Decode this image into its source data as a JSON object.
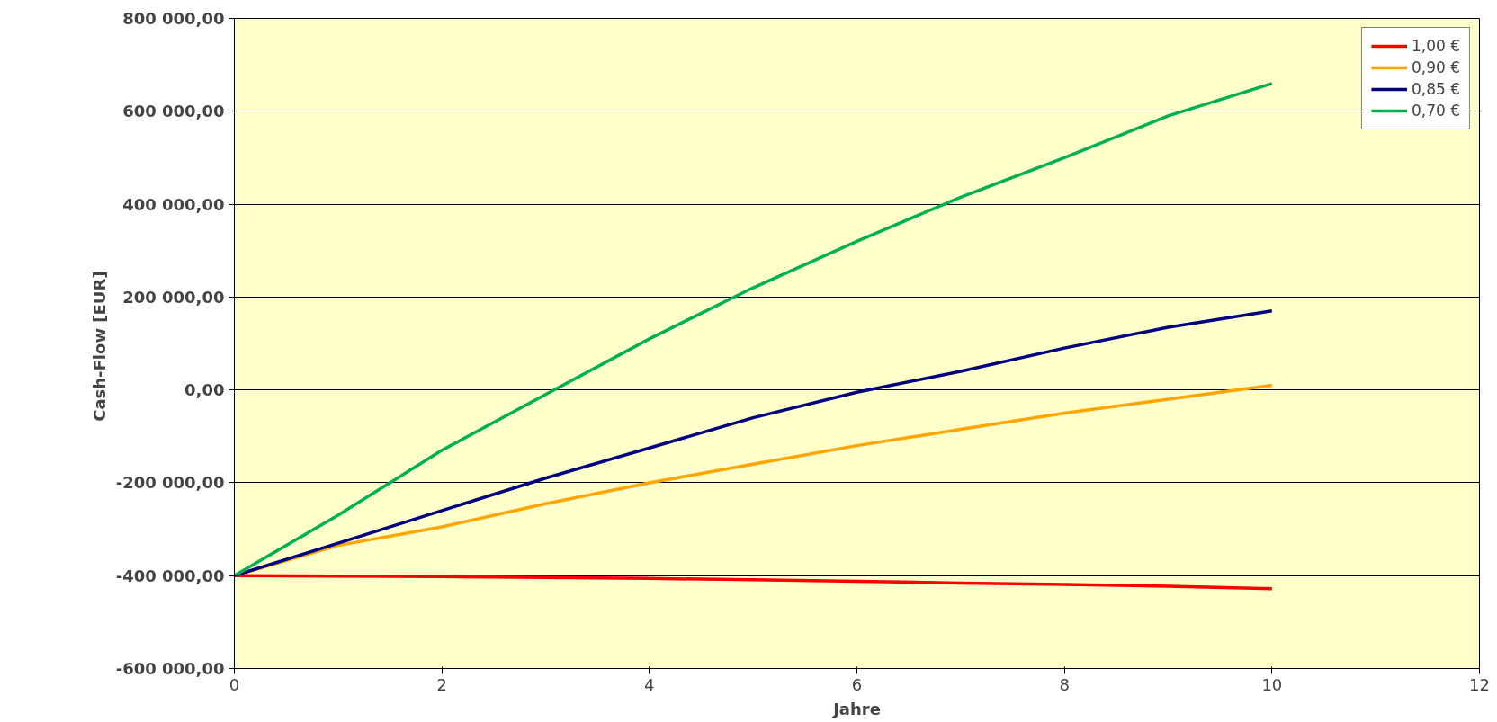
{
  "chart_data": {
    "type": "line",
    "xlabel": "Jahre",
    "ylabel": "Cash-Flow  [EUR]",
    "x": [
      0,
      1,
      2,
      3,
      4,
      5,
      6,
      7,
      8,
      9,
      10
    ],
    "series": [
      {
        "name": "1,00 €",
        "color": "#ff0000",
        "values": [
          -400000,
          -401000,
          -402000,
          -404000,
          -406000,
          -409000,
          -412000,
          -416000,
          -419000,
          -423000,
          -428000
        ]
      },
      {
        "name": "0,90 €",
        "color": "#ffa500",
        "values": [
          -400000,
          -335000,
          -295000,
          -245000,
          -200000,
          -160000,
          -120000,
          -85000,
          -50000,
          -20000,
          10000
        ]
      },
      {
        "name": "0,85 €",
        "color": "#000080",
        "values": [
          -400000,
          -330000,
          -260000,
          -190000,
          -125000,
          -60000,
          -5000,
          40000,
          90000,
          135000,
          170000
        ]
      },
      {
        "name": "0,70 €",
        "color": "#00b050",
        "values": [
          -400000,
          -270000,
          -130000,
          -10000,
          110000,
          220000,
          320000,
          415000,
          500000,
          590000,
          660000
        ]
      }
    ],
    "xlim": [
      0,
      12
    ],
    "xticks": [
      0,
      2,
      4,
      6,
      8,
      10,
      12
    ],
    "ylim": [
      -600000,
      800000
    ],
    "yticks": [
      {
        "value": -600000,
        "label": "-600 000,00"
      },
      {
        "value": -400000,
        "label": "-400 000,00"
      },
      {
        "value": -200000,
        "label": "-200 000,00"
      },
      {
        "value": 0,
        "label": "0,00"
      },
      {
        "value": 200000,
        "label": "200 000,00"
      },
      {
        "value": 400000,
        "label": "400 000,00"
      },
      {
        "value": 600000,
        "label": "600 000,00"
      },
      {
        "value": 800000,
        "label": "800 000,00"
      }
    ],
    "grid": "y",
    "legend": "top right",
    "marker": "none",
    "line_style": "solid"
  }
}
